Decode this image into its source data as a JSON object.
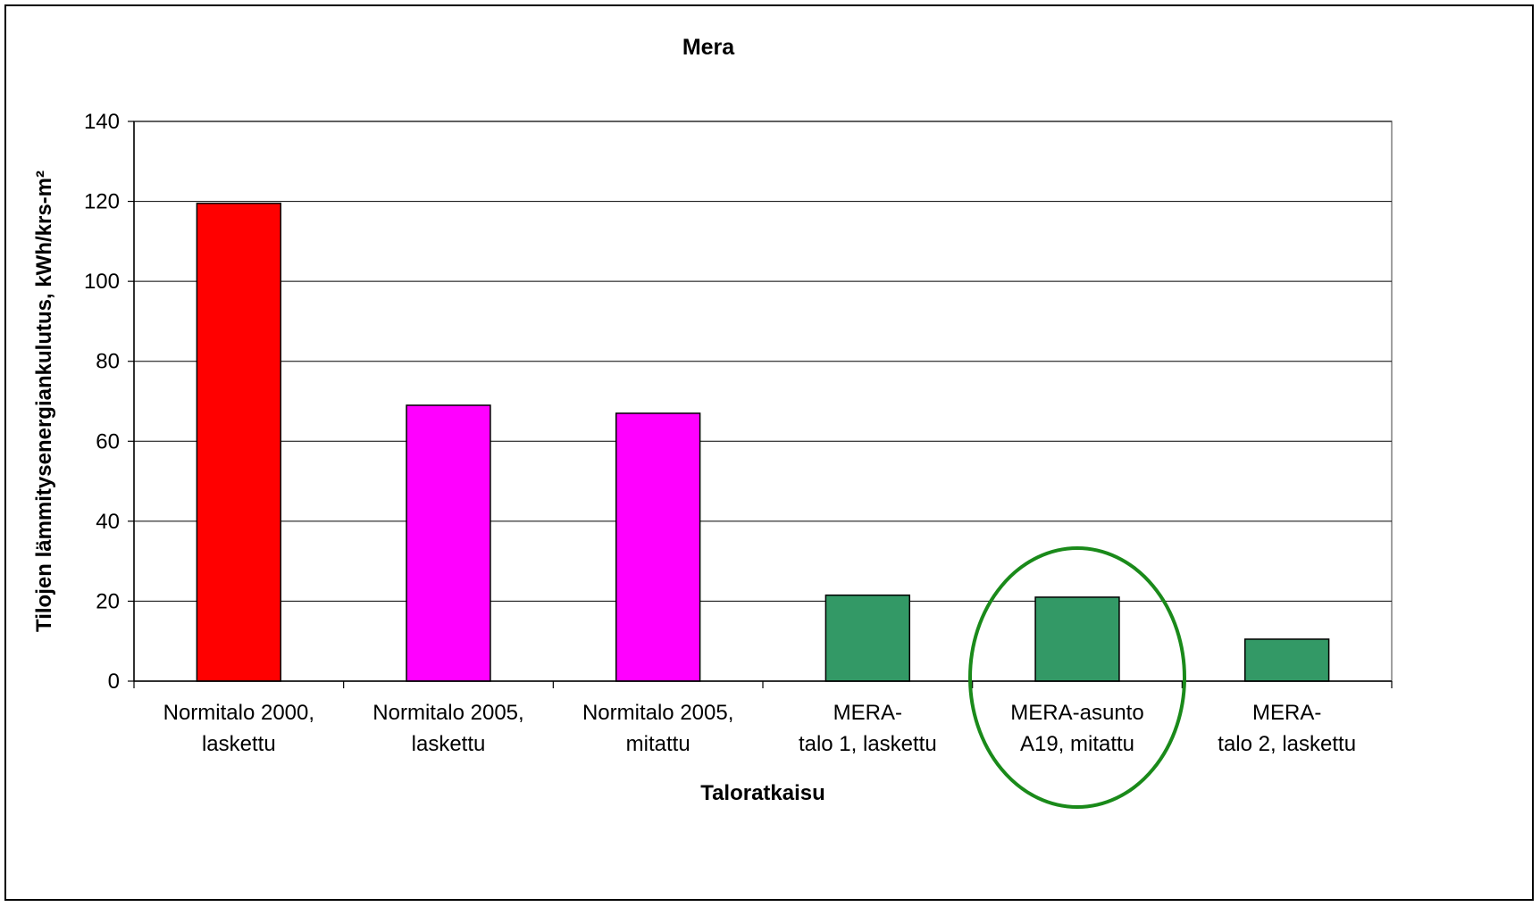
{
  "chart_data": {
    "type": "bar",
    "title": "Mera",
    "xlabel": "Taloratkaisu",
    "ylabel": "Tilojen lämmitysenergiankulutus, kWh/krs-m²",
    "ylim": [
      0,
      140
    ],
    "yticks": [
      0,
      20,
      40,
      60,
      80,
      100,
      120,
      140
    ],
    "grid": true,
    "categories": [
      [
        "Normitalo 2000,",
        "laskettu"
      ],
      [
        "Normitalo 2005,",
        "laskettu"
      ],
      [
        "Normitalo 2005,",
        "mitattu"
      ],
      [
        "MERA-",
        "talo 1, laskettu"
      ],
      [
        "MERA-asunto",
        "A19, mitattu"
      ],
      [
        "MERA-",
        "talo 2, laskettu"
      ]
    ],
    "values": [
      119.5,
      69,
      67,
      21.5,
      21,
      10.5
    ],
    "colors": [
      "#ff0000",
      "#ff00ff",
      "#ff00ff",
      "#339966",
      "#339966",
      "#339966"
    ],
    "highlight": {
      "category_index": 4,
      "shape": "ellipse",
      "color": "#1a8a1a"
    }
  }
}
